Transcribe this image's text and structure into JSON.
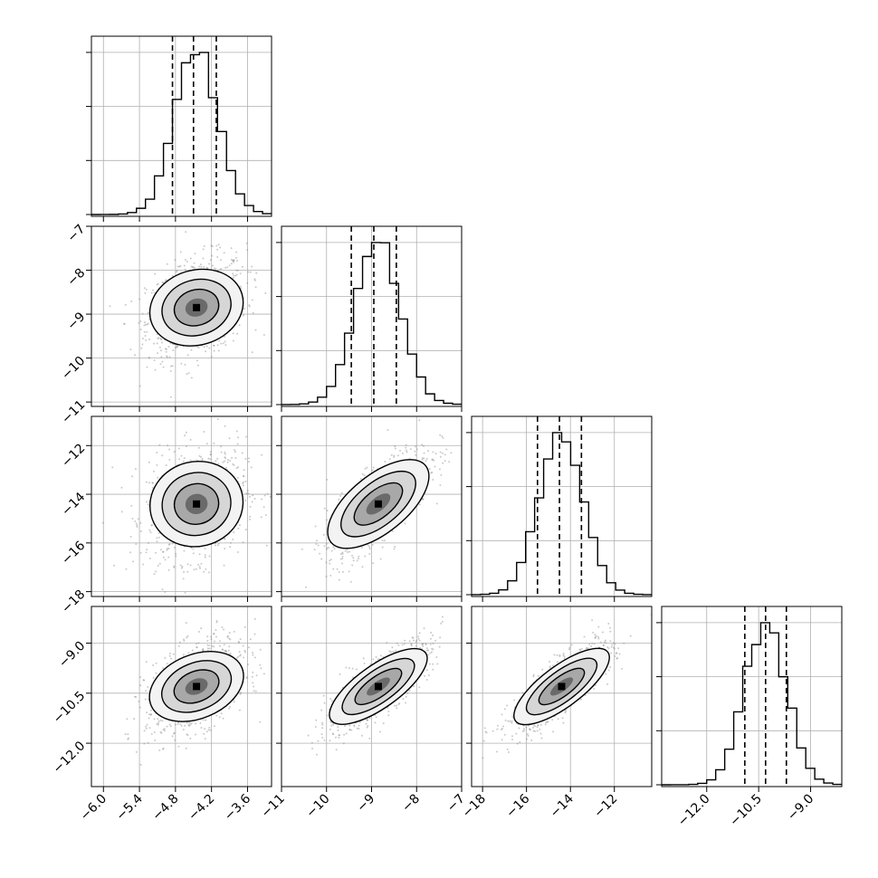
{
  "chart_data": {
    "type": "corner",
    "parameters": 4,
    "axes": [
      {
        "xlim": [
          -6.2,
          -3.2
        ],
        "ticks": [
          -6.0,
          -5.4,
          -4.8,
          -4.2,
          -3.6
        ],
        "tick_labels": [
          "−6.0",
          "−5.4",
          "−4.8",
          "−4.2",
          "−3.6"
        ],
        "quantiles": [
          -4.85,
          -4.5,
          -4.12
        ],
        "peak": -4.45,
        "sd": 0.36
      },
      {
        "xlim": [
          -11,
          -7
        ],
        "ticks": [
          -11,
          -10,
          -9,
          -8,
          -7
        ],
        "tick_labels": [
          "−11",
          "−10",
          "−9",
          "−8",
          "−7"
        ],
        "quantiles": [
          -9.45,
          -8.95,
          -8.45
        ],
        "peak": -8.85,
        "sd": 0.5
      },
      {
        "xlim": [
          -18.5,
          -10.3
        ],
        "ticks": [
          -18,
          -16,
          -14,
          -12
        ],
        "tick_labels": [
          "−18",
          "−16",
          "−14",
          "−12"
        ],
        "quantiles": [
          -15.5,
          -14.5,
          -13.5
        ],
        "peak": -14.4,
        "sd": 1.0
      },
      {
        "xlim": [
          -13.3,
          -8.1
        ],
        "ticks": [
          -12.0,
          -10.5,
          -9.0
        ],
        "tick_labels": [
          "−12.0",
          "−10.5",
          "−9.0"
        ],
        "quantiles": [
          -10.9,
          -10.3,
          -9.7
        ],
        "peak": -10.3,
        "sd": 0.6
      }
    ],
    "y_axes": [
      {
        "row": 1,
        "ylim": [
          -11.1,
          -7
        ],
        "ticks": [
          -7,
          -8,
          -9,
          -10,
          -11
        ],
        "tick_labels": [
          "−7",
          "−8",
          "−9",
          "−10",
          "−11"
        ]
      },
      {
        "row": 2,
        "ylim": [
          -18.2,
          -10.8
        ],
        "ticks": [
          -12,
          -14,
          -16,
          -18
        ],
        "tick_labels": [
          "−12",
          "−14",
          "−16",
          "−18"
        ]
      },
      {
        "row": 3,
        "ylim": [
          -13.3,
          -7.9
        ],
        "ticks": [
          -9.0,
          -10.5,
          -12.0
        ],
        "tick_labels": [
          "−9.0",
          "−10.5",
          "−12.0"
        ]
      }
    ],
    "correlations": [
      [
        1,
        0.3,
        0.22,
        0.45
      ],
      [
        0.3,
        1,
        0.75,
        0.8
      ],
      [
        0.22,
        0.75,
        1,
        0.82
      ],
      [
        0.45,
        0.8,
        0.82,
        1
      ]
    ],
    "grid": true,
    "contour_levels": 3,
    "quantile_line_style": "dashed"
  }
}
